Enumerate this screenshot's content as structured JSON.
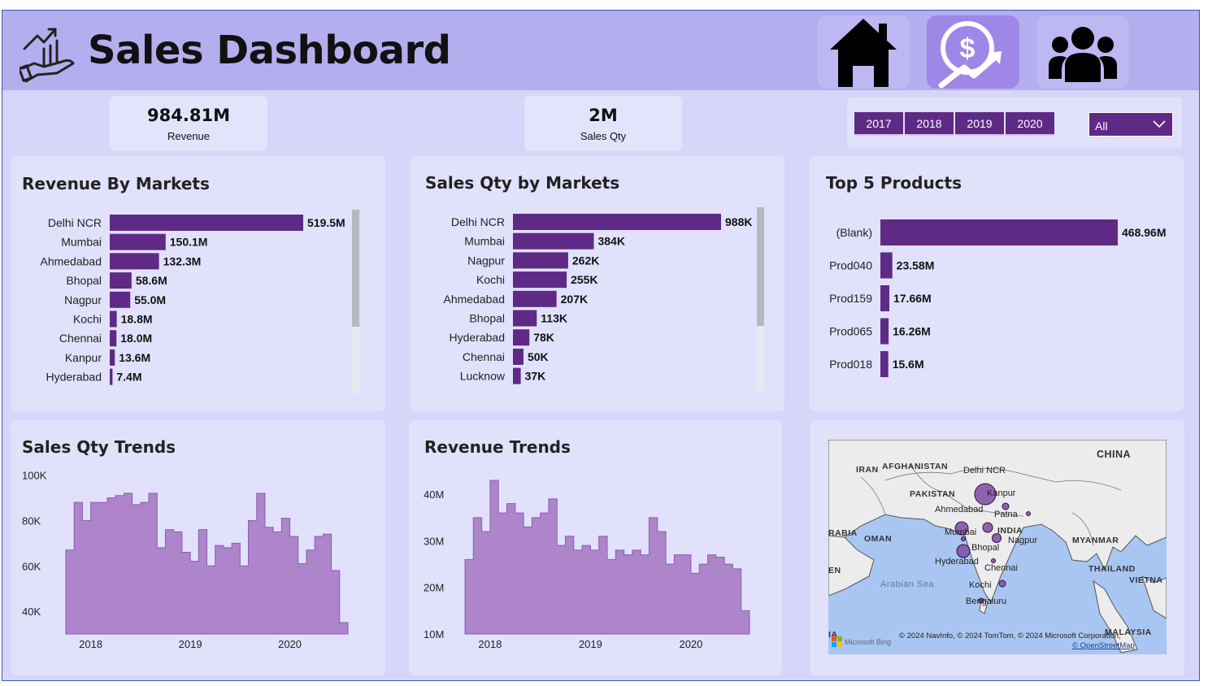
{
  "header": {
    "title": "Sales Dashboard",
    "logo_icon": "hand-growth-chart-icon",
    "nav": [
      {
        "name": "home-icon",
        "active": false
      },
      {
        "name": "revenue-growth-icon",
        "active": true
      },
      {
        "name": "customers-group-icon",
        "active": false
      }
    ]
  },
  "kpis": {
    "revenue": {
      "value": "984.81M",
      "label": "Revenue"
    },
    "sales_qty": {
      "value": "2M",
      "label": "Sales Qty"
    }
  },
  "filters": {
    "years": [
      "2017",
      "2018",
      "2019",
      "2020"
    ],
    "market_dropdown": {
      "selected": "All"
    }
  },
  "colors": {
    "accent": "#5e2a85",
    "area": "#ae85ca",
    "header": "#b4aeee"
  },
  "chart_data": [
    {
      "id": "revenue_by_markets",
      "type": "bar",
      "orientation": "horizontal",
      "title": "Revenue By Markets",
      "categories": [
        "Delhi NCR",
        "Mumbai",
        "Ahmedabad",
        "Bhopal",
        "Nagpur",
        "Kochi",
        "Chennai",
        "Kanpur",
        "Hyderabad"
      ],
      "values": [
        519.5,
        150.1,
        132.3,
        58.6,
        55.0,
        18.8,
        18.0,
        13.6,
        7.4
      ],
      "labels": [
        "519.5M",
        "150.1M",
        "132.3M",
        "58.6M",
        "55.0M",
        "18.8M",
        "18.0M",
        "13.6M",
        "7.4M"
      ],
      "max": 519.5
    },
    {
      "id": "sales_qty_by_markets",
      "type": "bar",
      "orientation": "horizontal",
      "title": "Sales Qty by Markets",
      "categories": [
        "Delhi NCR",
        "Mumbai",
        "Nagpur",
        "Kochi",
        "Ahmedabad",
        "Bhopal",
        "Hyderabad",
        "Chennai",
        "Lucknow"
      ],
      "values": [
        988,
        384,
        262,
        255,
        207,
        113,
        78,
        50,
        37
      ],
      "labels": [
        "988K",
        "384K",
        "262K",
        "255K",
        "207K",
        "113K",
        "78K",
        "50K",
        "37K"
      ],
      "max": 988
    },
    {
      "id": "top_5_products",
      "type": "bar",
      "orientation": "horizontal",
      "title": "Top 5 Products",
      "categories": [
        "(Blank)",
        "Prod040",
        "Prod159",
        "Prod065",
        "Prod018"
      ],
      "values": [
        468.96,
        23.58,
        17.66,
        16.26,
        15.6
      ],
      "labels": [
        "468.96M",
        "23.58M",
        "17.66M",
        "16.26M",
        "15.6M"
      ],
      "max": 468.96
    },
    {
      "id": "sales_qty_trends",
      "type": "area",
      "step": true,
      "title": "Sales Qty Trends",
      "x_start": "2017-10",
      "x_ticks": [
        "2018",
        "2019",
        "2020"
      ],
      "x_tick_positions": [
        3,
        15,
        27
      ],
      "y_ticks": [
        "40K",
        "60K",
        "80K",
        "100K"
      ],
      "y_tick_values": [
        40000,
        60000,
        80000,
        100000
      ],
      "ylim": [
        30000,
        102000
      ],
      "values": [
        67000,
        88000,
        80000,
        88000,
        88000,
        90000,
        91000,
        92000,
        87000,
        88000,
        92000,
        68000,
        76000,
        75000,
        66000,
        62000,
        76000,
        60000,
        69000,
        68000,
        70000,
        60000,
        80000,
        92000,
        77000,
        75000,
        81000,
        73000,
        61000,
        67000,
        73000,
        74000,
        58000,
        35000
      ]
    },
    {
      "id": "revenue_trends",
      "type": "area",
      "step": true,
      "title": "Revenue Trends",
      "x_start": "2017-10",
      "x_ticks": [
        "2018",
        "2019",
        "2020"
      ],
      "x_tick_positions": [
        3,
        15,
        27
      ],
      "y_ticks": [
        "10M",
        "20M",
        "30M",
        "40M"
      ],
      "y_tick_values": [
        10,
        20,
        30,
        40
      ],
      "ylim": [
        10,
        43
      ],
      "values": [
        26,
        35,
        32,
        43,
        36,
        38,
        36,
        33,
        35,
        36,
        39,
        29,
        31,
        28,
        29,
        28,
        31,
        26,
        28,
        27,
        28,
        27,
        35,
        32,
        25,
        27,
        27,
        23,
        25,
        27,
        26.5,
        25,
        24,
        15
      ]
    }
  ],
  "map": {
    "country_labels": [
      "CHINA",
      "IRAN",
      "AFGHANISTAN",
      "PAKISTAN",
      "INDIA",
      "OMAN",
      "RABIA",
      "MYANMAR",
      "THAILAND",
      "VIETNA",
      "MALAYSIA",
      "EN",
      "IA"
    ],
    "water_labels": [
      "Arabian Sea"
    ],
    "cities": [
      "Delhi NCR",
      "Kanpur",
      "Ahmedabad",
      "Patna",
      "Mumbai",
      "Nagpur",
      "Bhopal",
      "Hyderabad",
      "Chennai",
      "Kochi",
      "Bengaluru"
    ],
    "attribution": "© 2024 NavInfo, © 2024 TomTom, © 2024 Microsoft Corporation,",
    "attribution_link": "© OpenStreetMap",
    "provider": "Microsoft Bing"
  }
}
